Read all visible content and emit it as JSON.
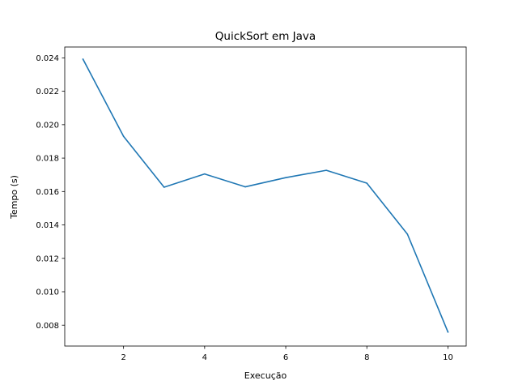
{
  "chart_data": {
    "type": "line",
    "title": "QuickSort em Java",
    "xlabel": "Execução",
    "ylabel": "Tempo (s)",
    "xlim": [
      0.55,
      10.45
    ],
    "ylim": [
      0.00675,
      0.02465
    ],
    "xticks": [
      2,
      4,
      6,
      8,
      10
    ],
    "yticks": [
      0.008,
      0.01,
      0.012,
      0.014,
      0.016,
      0.018,
      0.02,
      0.022,
      0.024
    ],
    "xtick_labels": [
      "2",
      "4",
      "6",
      "8",
      "10"
    ],
    "ytick_labels": [
      "0.008",
      "0.010",
      "0.012",
      "0.014",
      "0.016",
      "0.018",
      "0.020",
      "0.022",
      "0.024"
    ],
    "grid": false,
    "series": [
      {
        "color": "#1f77b4",
        "x": [
          1,
          2,
          3,
          4,
          5,
          6,
          7,
          8,
          9,
          10
        ],
        "values": [
          0.02392,
          0.0193,
          0.01626,
          0.01705,
          0.01628,
          0.01683,
          0.01727,
          0.0165,
          0.01345,
          0.00759
        ]
      }
    ]
  }
}
